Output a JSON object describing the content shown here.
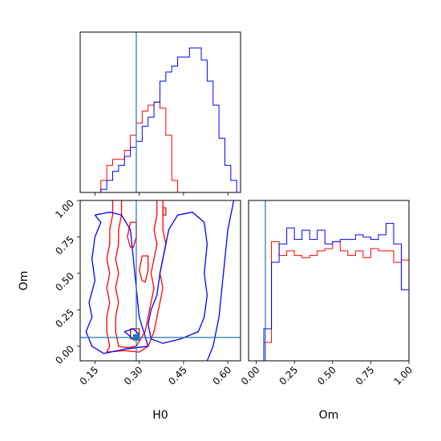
{
  "chart_data": {
    "type": "corner",
    "parameters": [
      "H0",
      "Om"
    ],
    "truth": {
      "H0": 0.29,
      "Om": 0.06
    },
    "truth_color": "#1f77b4",
    "series": [
      {
        "color": "#ff0000"
      },
      {
        "color": "#0000ff"
      }
    ],
    "panels": [
      {
        "id": "hist-H0",
        "type": "step-histogram",
        "xlim": [
          0.1,
          0.643
        ],
        "xticks": [
          0.15,
          0.3,
          0.45,
          0.6
        ],
        "bin_edges": [
          0.05,
          0.07,
          0.09,
          0.11,
          0.13,
          0.15,
          0.17,
          0.19,
          0.21,
          0.23,
          0.25,
          0.27,
          0.29,
          0.31,
          0.33,
          0.35,
          0.37,
          0.39,
          0.41,
          0.43,
          0.45,
          0.47,
          0.49,
          0.51,
          0.53,
          0.55,
          0.57,
          0.59,
          0.61,
          0.63,
          0.65,
          0.67
        ],
        "series": [
          {
            "counts": [
              0,
              0,
              0,
              0,
              0,
              0,
              4,
              9,
              11,
              11,
              14,
              19,
              23,
              27,
              29,
              30,
              28,
              19,
              4,
              0,
              0,
              0,
              0,
              0,
              0,
              0,
              0,
              0,
              0,
              0,
              0
            ]
          },
          {
            "counts": [
              0,
              0,
              0,
              0,
              0,
              0,
              1,
              4,
              7,
              9,
              12,
              15,
              17,
              22,
              25,
              30,
              37,
              40,
              42,
              45,
              45,
              48,
              48,
              44,
              37,
              29,
              18,
              9,
              4,
              0,
              0
            ]
          }
        ]
      },
      {
        "id": "hist-Om",
        "type": "step-histogram",
        "xlim": [
          -0.05,
          1.0
        ],
        "ylim": [
          0,
          70
        ],
        "xticks": [
          0.0,
          0.25,
          0.5,
          0.75,
          1.0
        ],
        "xticklabels": [
          "0.00",
          "0.25",
          "0.50",
          "0.75",
          "1.00"
        ],
        "bin_edges": [
          -0.05,
          0.0,
          0.05,
          0.1,
          0.15,
          0.2,
          0.25,
          0.3,
          0.35,
          0.4,
          0.45,
          0.5,
          0.55,
          0.6,
          0.65,
          0.7,
          0.75,
          0.8,
          0.85,
          0.9,
          0.95,
          1.0
        ],
        "series": [
          {
            "counts": [
              0,
              0,
              8,
              52,
              46,
              48,
              46,
              45,
              46,
              48,
              49,
              52,
              48,
              46,
              48,
              45,
              49,
              48,
              48,
              43,
              44
            ]
          },
          {
            "counts": [
              0,
              0,
              14,
              43,
              51,
              58,
              53,
              57,
              53,
              57,
              51,
              52,
              53,
              53,
              55,
              54,
              53,
              55,
              60,
              51,
              31
            ]
          }
        ]
      },
      {
        "id": "contour-H0-Om",
        "type": "contour",
        "xlim": [
          0.1,
          0.643
        ],
        "ylim": [
          -0.1,
          1.0
        ],
        "xticks": [
          0.15,
          0.3,
          0.45,
          0.6
        ],
        "yticks": [
          0.0,
          0.25,
          0.5,
          0.75,
          1.0
        ],
        "xticklabels": [
          "0.15",
          "0.30",
          "0.45",
          "0.60"
        ],
        "yticklabels": [
          "0.00",
          "0.25",
          "0.50",
          "0.75",
          "1.00"
        ],
        "xlabel": "H0",
        "ylabel": "Om",
        "series": [
          {
            "levels": [
              [
                [
                  0.21,
                  1.0
                ],
                [
                  0.21,
                  0.9
                ],
                [
                  0.2,
                  0.8
                ],
                [
                  0.2,
                  0.7
                ],
                [
                  0.19,
                  0.6
                ],
                [
                  0.2,
                  0.5
                ],
                [
                  0.19,
                  0.4
                ],
                [
                  0.2,
                  0.3
                ],
                [
                  0.19,
                  0.2
                ],
                [
                  0.19,
                  0.1
                ],
                [
                  0.2,
                  0.0
                ],
                [
                  0.19,
                  -0.04
                ],
                [
                  0.25,
                  -0.03
                ],
                [
                  0.3,
                  -0.04
                ],
                [
                  0.33,
                  0.0
                ],
                [
                  0.35,
                  0.1
                ],
                [
                  0.36,
                  0.2
                ],
                [
                  0.37,
                  0.3
                ],
                [
                  0.38,
                  0.4
                ],
                [
                  0.37,
                  0.5
                ],
                [
                  0.38,
                  0.6
                ],
                [
                  0.39,
                  0.7
                ],
                [
                  0.38,
                  0.8
                ],
                [
                  0.38,
                  0.9
                ],
                [
                  0.38,
                  1.0
                ]
              ],
              [
                [
                  0.24,
                  1.0
                ],
                [
                  0.24,
                  0.9
                ],
                [
                  0.23,
                  0.8
                ],
                [
                  0.23,
                  0.7
                ],
                [
                  0.22,
                  0.6
                ],
                [
                  0.23,
                  0.5
                ],
                [
                  0.22,
                  0.4
                ],
                [
                  0.23,
                  0.3
                ],
                [
                  0.22,
                  0.2
                ],
                [
                  0.22,
                  0.1
                ],
                [
                  0.23,
                  0.0
                ],
                [
                  0.26,
                  -0.01
                ],
                [
                  0.29,
                  0.0
                ],
                [
                  0.32,
                  0.1
                ],
                [
                  0.33,
                  0.2
                ],
                [
                  0.34,
                  0.3
                ],
                [
                  0.35,
                  0.4
                ],
                [
                  0.34,
                  0.5
                ],
                [
                  0.35,
                  0.6
                ],
                [
                  0.36,
                  0.7
                ],
                [
                  0.35,
                  0.8
                ],
                [
                  0.36,
                  0.9
                ],
                [
                  0.36,
                  1.0
                ]
              ],
              [
                [
                  0.27,
                  0.85
                ],
                [
                  0.29,
                  0.85
                ],
                [
                  0.29,
                  0.75
                ],
                [
                  0.28,
                  0.68
                ],
                [
                  0.27,
                  0.68
                ],
                [
                  0.26,
                  0.75
                ],
                [
                  0.27,
                  0.85
                ]
              ],
              [
                [
                  0.31,
                  0.62
                ],
                [
                  0.33,
                  0.62
                ],
                [
                  0.33,
                  0.52
                ],
                [
                  0.32,
                  0.44
                ],
                [
                  0.31,
                  0.45
                ],
                [
                  0.3,
                  0.52
                ],
                [
                  0.31,
                  0.62
                ]
              ],
              [
                [
                  0.27,
                  0.12
                ],
                [
                  0.3,
                  0.12
                ],
                [
                  0.3,
                  0.05
                ],
                [
                  0.27,
                  0.05
                ],
                [
                  0.27,
                  0.12
                ]
              ],
              [
                [
                  0.38,
                  0.95
                ],
                [
                  0.39,
                  0.95
                ],
                [
                  0.39,
                  0.9
                ],
                [
                  0.38,
                  0.9
                ],
                [
                  0.38,
                  0.95
                ]
              ]
            ]
          },
          {
            "levels": [
              [
                [
                  0.62,
                  1.0
                ],
                [
                  0.6,
                  0.8
                ],
                [
                  0.59,
                  0.6
                ],
                [
                  0.58,
                  0.4
                ],
                [
                  0.57,
                  0.2
                ],
                [
                  0.55,
                  0.0
                ],
                [
                  0.53,
                  -0.1
                ]
              ],
              [
                [
                  0.36,
                  0.35
                ],
                [
                  0.34,
                  0.25
                ],
                [
                  0.33,
                  0.15
                ],
                [
                  0.34,
                  0.05
                ],
                [
                  0.38,
                  0.02
                ],
                [
                  0.44,
                  0.05
                ],
                [
                  0.5,
                  0.1
                ],
                [
                  0.52,
                  0.2
                ],
                [
                  0.53,
                  0.35
                ],
                [
                  0.52,
                  0.5
                ],
                [
                  0.53,
                  0.7
                ],
                [
                  0.52,
                  0.85
                ],
                [
                  0.48,
                  0.92
                ],
                [
                  0.43,
                  0.9
                ],
                [
                  0.4,
                  0.8
                ],
                [
                  0.39,
                  0.7
                ],
                [
                  0.38,
                  0.6
                ],
                [
                  0.37,
                  0.5
                ],
                [
                  0.36,
                  0.35
                ]
              ],
              [
                [
                  0.15,
                  0.9
                ],
                [
                  0.17,
                  0.85
                ],
                [
                  0.15,
                  0.75
                ],
                [
                  0.14,
                  0.6
                ],
                [
                  0.15,
                  0.45
                ],
                [
                  0.13,
                  0.3
                ],
                [
                  0.14,
                  0.2
                ],
                [
                  0.12,
                  0.1
                ],
                [
                  0.14,
                  0.0
                ],
                [
                  0.18,
                  -0.05
                ],
                [
                  0.25,
                  -0.02
                ],
                [
                  0.33,
                  0.0
                ],
                [
                  0.3,
                  0.2
                ],
                [
                  0.29,
                  0.4
                ],
                [
                  0.28,
                  0.6
                ],
                [
                  0.27,
                  0.8
                ],
                [
                  0.24,
                  0.9
                ],
                [
                  0.2,
                  0.92
                ],
                [
                  0.15,
                  0.9
                ]
              ],
              [
                [
                  0.25,
                  0.1
                ],
                [
                  0.28,
                  0.12
                ],
                [
                  0.3,
                  0.08
                ],
                [
                  0.28,
                  0.05
                ],
                [
                  0.25,
                  0.1
                ]
              ]
            ]
          }
        ]
      }
    ]
  }
}
